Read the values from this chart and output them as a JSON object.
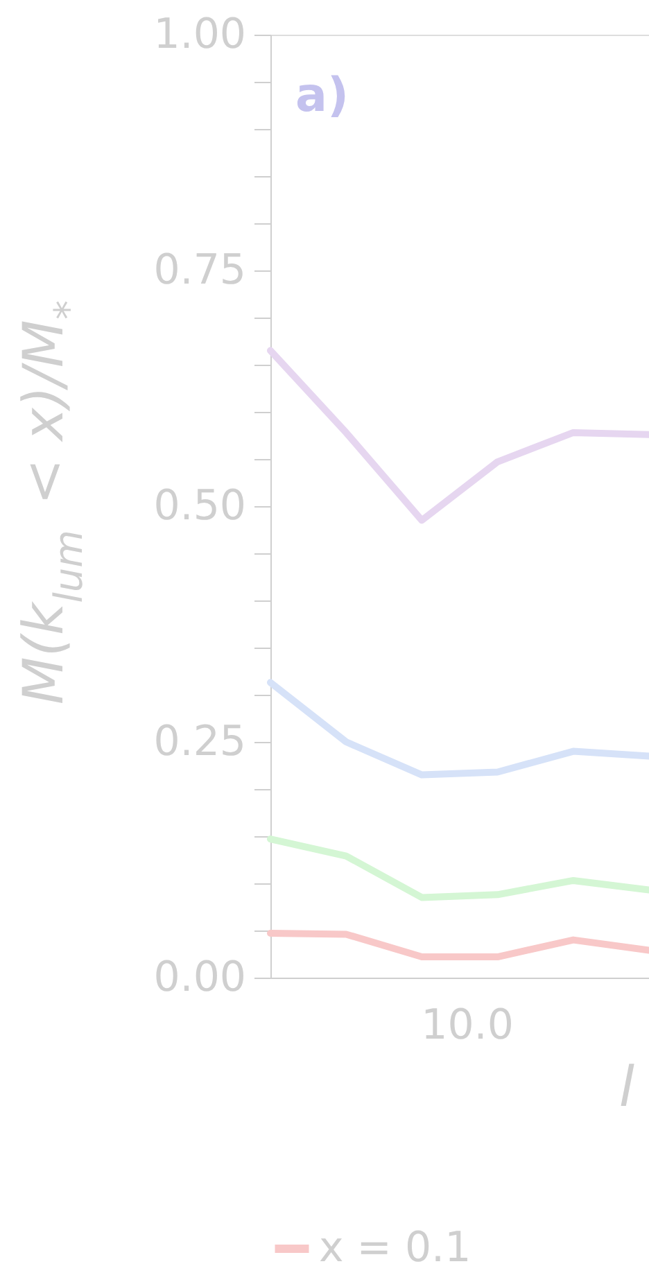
{
  "chart_data": {
    "type": "line",
    "xlabel": "l",
    "ylabel": "M(k$_{lum}$ < x)/M$_{*}$",
    "annotations": [
      "a)",
      "10.0"
    ],
    "categories": [
      null,
      null,
      null,
      null,
      null,
      null
    ],
    "series": [
      {
        "color": "#e6d6f0",
        "values": [
          0.665,
          0.578,
          0.485,
          0.547,
          0.578,
          0.576
        ]
      },
      {
        "color": "#d6e2f8",
        "values": [
          0.313,
          0.25,
          0.215,
          0.218,
          0.24,
          0.235
        ]
      },
      {
        "color": "#d4f6d4",
        "values": [
          0.147,
          0.129,
          0.085,
          0.088,
          0.103,
          0.093
        ]
      },
      {
        "name": "x = 0.1",
        "color": "#f8c8c8",
        "values": [
          0.047,
          0.046,
          0.022,
          0.022,
          0.04,
          0.029
        ]
      }
    ],
    "ylim": [
      0,
      1
    ],
    "yticks": [
      {
        "value": 0,
        "label": "0.00"
      },
      {
        "value": 0.05,
        "label": null
      },
      {
        "value": 0.1,
        "label": null
      },
      {
        "value": 0.15,
        "label": null
      },
      {
        "value": 0.2,
        "label": null
      },
      {
        "value": 0.25,
        "label": "0.25"
      },
      {
        "value": 0.3,
        "label": null
      },
      {
        "value": 0.35,
        "label": null
      },
      {
        "value": 0.4,
        "label": null
      },
      {
        "value": 0.45,
        "label": null
      },
      {
        "value": 0.5,
        "label": "0.50"
      },
      {
        "value": 0.55,
        "label": null
      },
      {
        "value": 0.6,
        "label": null
      },
      {
        "value": 0.65,
        "label": null
      },
      {
        "value": 0.7,
        "label": null
      },
      {
        "value": 0.75,
        "label": "0.75"
      },
      {
        "value": 0.8,
        "label": null
      },
      {
        "value": 0.85,
        "label": null
      },
      {
        "value": 0.9,
        "label": null
      },
      {
        "value": 0.95,
        "label": null
      },
      {
        "value": 1,
        "label": "1.00"
      }
    ],
    "grid": false,
    "legend": "bottom"
  }
}
